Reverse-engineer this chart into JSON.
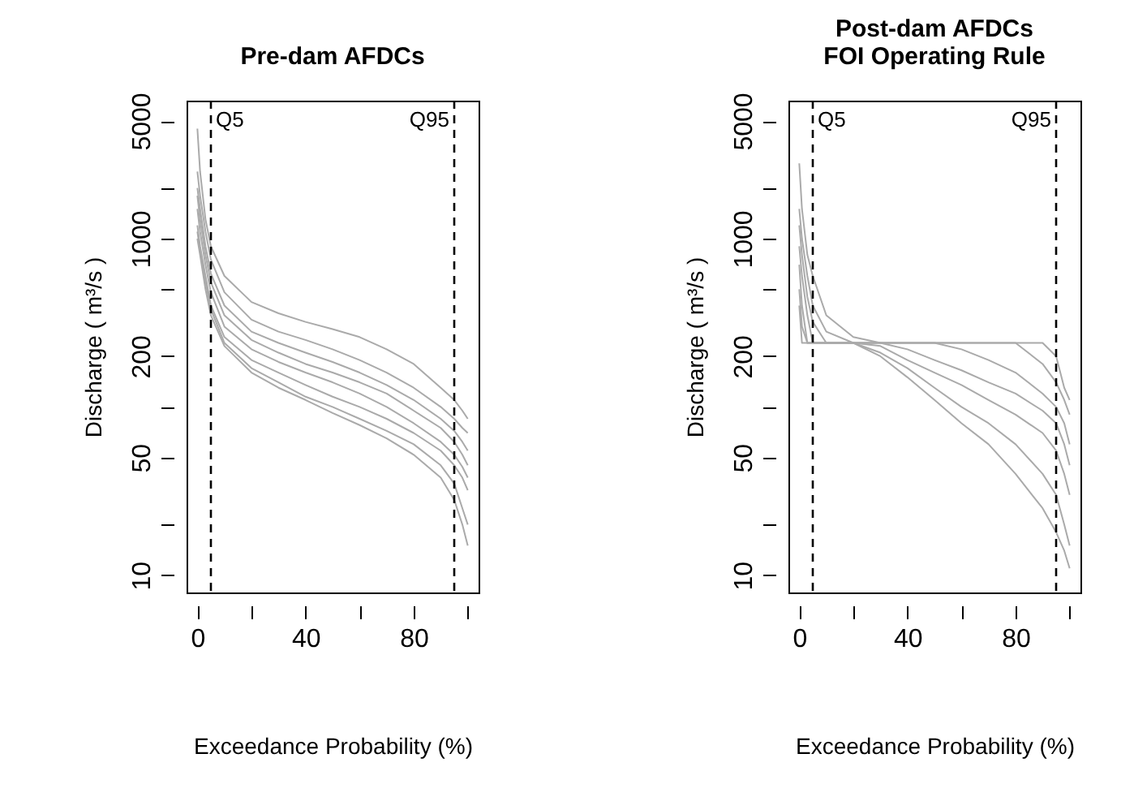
{
  "chart_data": [
    {
      "type": "line",
      "title": "Pre-dam AFDCs",
      "xlabel": "Exceedance Probability (%)",
      "ylabel": "Discharge ( m³/s )",
      "log": true,
      "grid": false,
      "x": [
        0,
        1,
        3,
        5,
        10,
        20,
        30,
        40,
        50,
        60,
        70,
        80,
        90,
        95,
        98,
        100
      ],
      "xlim": [
        -4,
        104
      ],
      "xticks": [
        0,
        {
          "value": 20,
          "label": null
        },
        40,
        {
          "value": 60,
          "label": null
        },
        80,
        {
          "value": 100,
          "label": null
        }
      ],
      "ylim": [
        7.9,
        6600
      ],
      "yticks": [
        10,
        {
          "value": 20,
          "label": null
        },
        50,
        {
          "value": 100,
          "label": null
        },
        200,
        {
          "value": 500,
          "label": null
        },
        1000,
        {
          "value": 2000,
          "label": null
        },
        5000
      ],
      "ref_lines": [
        {
          "axis": "x",
          "value": 5,
          "label": "Q5",
          "line_style": "dashed",
          "color": "#000000"
        },
        {
          "axis": "x",
          "value": 95,
          "label": "Q95",
          "line_style": "dashed",
          "color": "#000000"
        }
      ],
      "series": [
        {
          "color": "#aaaaaa",
          "values": [
            4500,
            2500,
            1300,
            900,
            600,
            420,
            360,
            320,
            290,
            260,
            220,
            180,
            130,
            110,
            95,
            85
          ]
        },
        {
          "color": "#aaaaaa",
          "values": [
            2500,
            1800,
            1100,
            750,
            480,
            330,
            280,
            250,
            220,
            190,
            160,
            130,
            100,
            85,
            75,
            70
          ]
        },
        {
          "color": "#aaaaaa",
          "values": [
            2000,
            1500,
            900,
            620,
            400,
            280,
            240,
            210,
            185,
            160,
            135,
            110,
            85,
            72,
            62,
            55
          ]
        },
        {
          "color": "#aaaaaa",
          "values": [
            1800,
            1300,
            800,
            550,
            350,
            250,
            210,
            180,
            160,
            140,
            120,
            95,
            75,
            62,
            52,
            45
          ]
        },
        {
          "color": "#aaaaaa",
          "values": [
            1500,
            1100,
            700,
            480,
            300,
            220,
            185,
            160,
            140,
            120,
            100,
            80,
            62,
            52,
            44,
            38
          ]
        },
        {
          "color": "#aaaaaa",
          "values": [
            1200,
            900,
            600,
            400,
            260,
            190,
            160,
            135,
            115,
            100,
            85,
            70,
            55,
            45,
            38,
            32
          ]
        },
        {
          "color": "#aaaaaa",
          "values": [
            1100,
            850,
            550,
            380,
            240,
            170,
            140,
            115,
            100,
            85,
            72,
            60,
            45,
            35,
            25,
            20
          ]
        },
        {
          "color": "#aaaaaa",
          "values": [
            1000,
            800,
            500,
            350,
            230,
            160,
            130,
            110,
            92,
            78,
            65,
            52,
            38,
            28,
            20,
            15
          ]
        }
      ]
    },
    {
      "type": "line",
      "title": "Post-dam AFDCs\nFOI Operating Rule",
      "xlabel": "Exceedance Probability (%)",
      "ylabel": "Discharge ( m³/s )",
      "log": true,
      "grid": false,
      "x": [
        0,
        1,
        3,
        5,
        10,
        20,
        30,
        40,
        50,
        60,
        70,
        80,
        90,
        95,
        98,
        100
      ],
      "xlim": [
        -4,
        104
      ],
      "xticks": [
        0,
        {
          "value": 20,
          "label": null
        },
        40,
        {
          "value": 60,
          "label": null
        },
        80,
        {
          "value": 100,
          "label": null
        }
      ],
      "ylim": [
        7.9,
        6600
      ],
      "yticks": [
        10,
        {
          "value": 20,
          "label": null
        },
        50,
        {
          "value": 100,
          "label": null
        },
        200,
        {
          "value": 500,
          "label": null
        },
        1000,
        {
          "value": 2000,
          "label": null
        },
        5000
      ],
      "ref_lines": [
        {
          "axis": "x",
          "value": 5,
          "label": "Q5",
          "line_style": "dashed",
          "color": "#000000"
        },
        {
          "axis": "x",
          "value": 95,
          "label": "Q95",
          "line_style": "dashed",
          "color": "#000000"
        }
      ],
      "series": [
        {
          "color": "#aaaaaa",
          "values": [
            2800,
            1500,
            800,
            600,
            350,
            260,
            240,
            240,
            240,
            240,
            240,
            240,
            240,
            200,
            130,
            110
          ]
        },
        {
          "color": "#aaaaaa",
          "values": [
            1500,
            1000,
            600,
            400,
            280,
            240,
            240,
            240,
            240,
            240,
            240,
            240,
            180,
            140,
            110,
            90
          ]
        },
        {
          "color": "#aaaaaa",
          "values": [
            1200,
            800,
            450,
            320,
            240,
            240,
            240,
            240,
            240,
            220,
            190,
            160,
            120,
            100,
            80,
            60
          ]
        },
        {
          "color": "#aaaaaa",
          "values": [
            900,
            600,
            350,
            240,
            240,
            240,
            240,
            220,
            190,
            165,
            140,
            120,
            95,
            80,
            60,
            45
          ]
        },
        {
          "color": "#aaaaaa",
          "values": [
            700,
            400,
            240,
            240,
            240,
            240,
            230,
            190,
            160,
            135,
            110,
            90,
            70,
            55,
            40,
            30
          ]
        },
        {
          "color": "#aaaaaa",
          "values": [
            500,
            300,
            240,
            240,
            240,
            240,
            210,
            170,
            130,
            100,
            80,
            60,
            40,
            30,
            20,
            15
          ]
        },
        {
          "color": "#aaaaaa",
          "values": [
            400,
            240,
            240,
            240,
            240,
            240,
            200,
            150,
            110,
            80,
            60,
            40,
            25,
            18,
            14,
            11
          ]
        }
      ]
    }
  ]
}
